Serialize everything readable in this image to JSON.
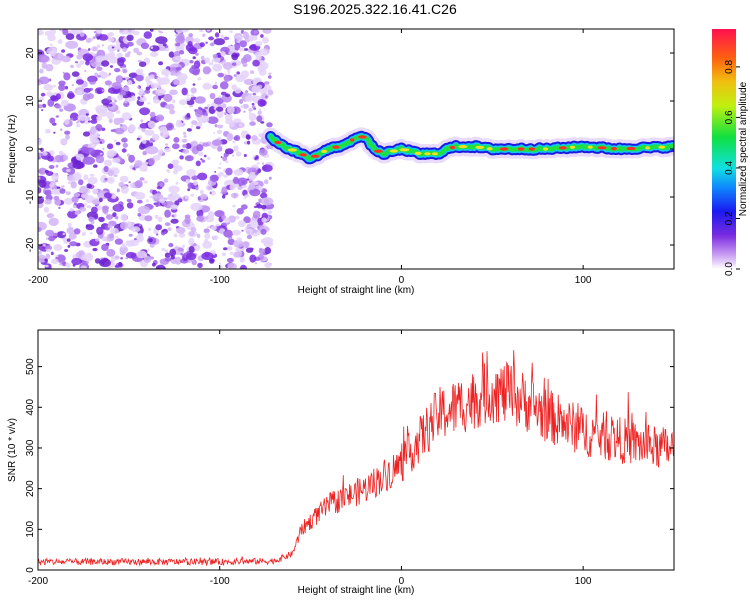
{
  "title": "S196.2025.322.16.41.C26",
  "chart_data": [
    {
      "type": "heatmap",
      "title": "S196.2025.322.16.41.C26",
      "xlabel": "Height of straight line (km)",
      "ylabel": "Frequency (Hz)",
      "xlim": [
        -200,
        150
      ],
      "ylim": [
        -25,
        25
      ],
      "xticks": [
        -200,
        -100,
        0,
        100
      ],
      "yticks": [
        -20,
        -10,
        0,
        10,
        20
      ],
      "colorbar": {
        "label": "Normalized spectral amplitude",
        "range": [
          0,
          0.95
        ],
        "ticks": [
          0.0,
          0.2,
          0.4,
          0.6,
          0.8
        ]
      },
      "noise_region_x": [
        -200,
        -72
      ],
      "ridge": {
        "x": [
          -72,
          -65,
          -58,
          -50,
          -45,
          -40,
          -35,
          -30,
          -25,
          -20,
          -15,
          -10,
          0,
          10,
          20,
          25,
          30,
          40,
          50,
          60,
          80,
          100,
          120,
          150
        ],
        "y": [
          2.5,
          0.5,
          -0.5,
          -2,
          -1,
          0,
          0.5,
          1,
          2.5,
          2.5,
          0,
          -1,
          0,
          -1,
          -1,
          0,
          0.5,
          0.5,
          0,
          0,
          0,
          0.5,
          0,
          0.5
        ]
      }
    },
    {
      "type": "line",
      "xlabel": "Height of straight line (km)",
      "ylabel": "SNR (10 * v/v)",
      "xlim": [
        -200,
        150
      ],
      "ylim": [
        0,
        590
      ],
      "xticks": [
        -200,
        -100,
        0,
        100
      ],
      "yticks": [
        0,
        100,
        200,
        300,
        400,
        500
      ],
      "color": "#ee2222",
      "envelope": {
        "x": [
          -200,
          -150,
          -100,
          -70,
          -60,
          -55,
          -40,
          -20,
          0,
          10,
          20,
          30,
          40,
          50,
          60,
          70,
          80,
          90,
          100,
          120,
          140,
          150
        ],
        "y": [
          20,
          20,
          20,
          22,
          40,
          100,
          160,
          200,
          260,
          320,
          380,
          400,
          420,
          440,
          430,
          410,
          380,
          360,
          340,
          320,
          300,
          300
        ]
      }
    }
  ]
}
